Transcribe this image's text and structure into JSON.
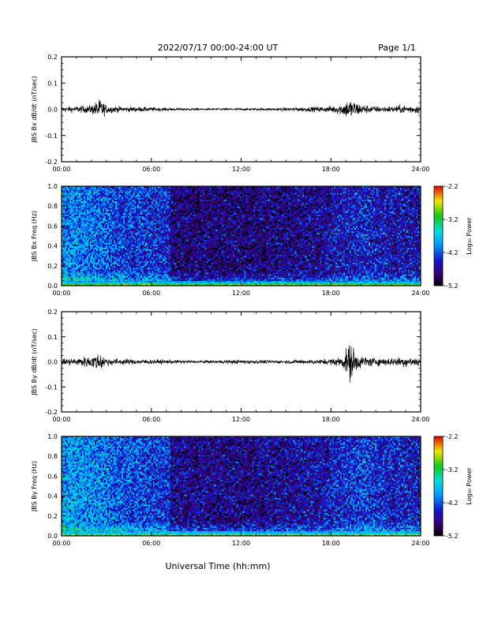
{
  "header": {
    "title": "2022/07/17  00:00-24:00 UT",
    "page": "Page 1/1"
  },
  "xaxis_title": "Universal Time (hh:mm)",
  "chart_data": [
    {
      "type": "line",
      "ylabel": "JBS Bx dB/dt (nT/sec)",
      "xlim": [
        0,
        24
      ],
      "ylim": [
        -0.2,
        0.2
      ],
      "xticks": [
        "00:00",
        "06:00",
        "12:00",
        "18:00",
        "24:00"
      ],
      "yticks": [
        "-0.2",
        "-0.1",
        "0.0",
        "0.1",
        "0.2"
      ],
      "series": [
        {
          "x": [
            0,
            1,
            2,
            2.6,
            3,
            4,
            5,
            6,
            7,
            8,
            9,
            10,
            11,
            12,
            13,
            14,
            15,
            16,
            17,
            18,
            18.8,
            19.2,
            19.6,
            20,
            21,
            22,
            23,
            24
          ],
          "amplitude": [
            0.012,
            0.015,
            0.02,
            0.05,
            0.02,
            0.013,
            0.012,
            0.01,
            0.008,
            0.006,
            0.005,
            0.005,
            0.005,
            0.006,
            0.005,
            0.006,
            0.008,
            0.01,
            0.012,
            0.015,
            0.03,
            0.05,
            0.04,
            0.025,
            0.015,
            0.015,
            0.02,
            0.02
          ]
        }
      ]
    },
    {
      "type": "heatmap",
      "ylabel": "JBS Bx Freq (Hz)",
      "colorbar_label": "Log₁₀ Power",
      "colorbar_ticks": [
        "-2.2",
        "-3.2",
        "-4.2",
        "-5.2"
      ],
      "color_range": [
        -5.2,
        -2.2
      ],
      "xlim": [
        0,
        24
      ],
      "ylim": [
        0,
        1.0
      ],
      "xticks": [
        "00:00",
        "06:00",
        "12:00",
        "18:00",
        "24:00"
      ],
      "yticks": [
        "0.0",
        "0.2",
        "0.4",
        "0.6",
        "0.8",
        "1.0"
      ],
      "power_by_time": {
        "x": [
          0,
          2,
          4,
          6,
          7.2,
          7.3,
          12,
          17,
          18,
          20,
          22,
          24
        ],
        "level": [
          -4.0,
          -4.1,
          -4.3,
          -4.35,
          -4.4,
          -4.8,
          -4.8,
          -4.7,
          -4.6,
          -4.45,
          -4.55,
          -4.6
        ]
      },
      "low_freq_enhancement": [
        -3.0,
        -3.6,
        -4.0
      ]
    },
    {
      "type": "line",
      "ylabel": "JBS By dB/dt (nT/sec)",
      "xlim": [
        0,
        24
      ],
      "ylim": [
        -0.2,
        0.2
      ],
      "xticks": [
        "00:00",
        "06:00",
        "12:00",
        "18:00",
        "24:00"
      ],
      "yticks": [
        "-0.2",
        "-0.1",
        "0.0",
        "0.1",
        "0.2"
      ],
      "series": [
        {
          "x": [
            0,
            1,
            2,
            2.6,
            3,
            4,
            5,
            6,
            7,
            8,
            9,
            10,
            11,
            12,
            13,
            14,
            15,
            16,
            17,
            18,
            18.8,
            19.3,
            19.8,
            20,
            21,
            22,
            23,
            24
          ],
          "amplitude": [
            0.015,
            0.02,
            0.03,
            0.045,
            0.02,
            0.015,
            0.012,
            0.012,
            0.01,
            0.008,
            0.007,
            0.007,
            0.009,
            0.01,
            0.009,
            0.008,
            0.008,
            0.01,
            0.012,
            0.015,
            0.03,
            0.1,
            0.04,
            0.03,
            0.02,
            0.02,
            0.025,
            0.025
          ]
        }
      ]
    },
    {
      "type": "heatmap",
      "ylabel": "JBS By Freq (Hz)",
      "colorbar_label": "Log₁₀ Power",
      "colorbar_ticks": [
        "-2.2",
        "-3.2",
        "-4.2",
        "-5.2"
      ],
      "color_range": [
        -5.2,
        -2.2
      ],
      "xlim": [
        0,
        24
      ],
      "ylim": [
        0,
        1.0
      ],
      "xticks": [
        "00:00",
        "06:00",
        "12:00",
        "18:00",
        "24:00"
      ],
      "yticks": [
        "0.0",
        "0.2",
        "0.4",
        "0.6",
        "0.8",
        "1.0"
      ],
      "power_by_time": {
        "x": [
          0,
          2,
          4,
          6,
          7.2,
          7.3,
          12,
          17,
          18,
          20,
          22,
          24
        ],
        "level": [
          -3.9,
          -4.0,
          -4.2,
          -4.3,
          -4.35,
          -4.7,
          -4.75,
          -4.6,
          -4.5,
          -4.3,
          -4.45,
          -4.5
        ]
      },
      "low_freq_enhancement": [
        -2.9,
        -3.5,
        -3.9
      ]
    }
  ]
}
